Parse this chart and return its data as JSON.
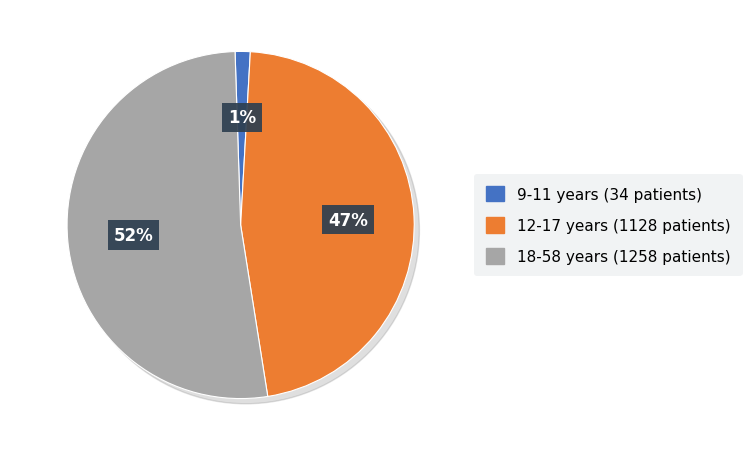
{
  "labels": [
    "9-11 years (34 patients)",
    "12-17 years (1128 patients)",
    "18-58 years (1258 patients)"
  ],
  "values": [
    34,
    1128,
    1258
  ],
  "colors": [
    "#4472C4",
    "#ED7D31",
    "#A6A6A6"
  ],
  "pct_labels": [
    "1%",
    "47%",
    "52%"
  ],
  "label_box_color": "#2E3F50",
  "background_color": "#FFFFFF",
  "pct_fontsize": 12,
  "legend_fontsize": 11,
  "legend_bg": "#EEF0F2",
  "startangle": 91.85
}
